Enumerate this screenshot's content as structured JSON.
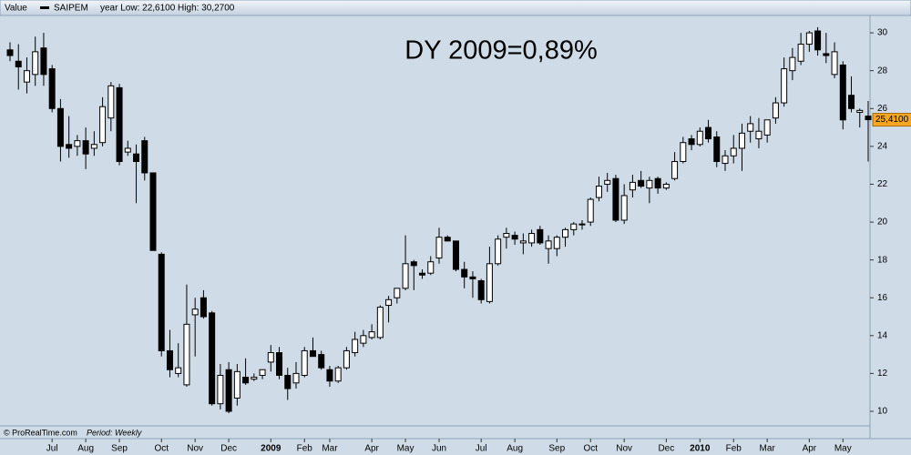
{
  "chart_data": {
    "type": "candlestick",
    "header_label": "Value",
    "subtitle": "year Low: 22,6100 High: 30,2700",
    "annotation": "DY 2009=0,89%",
    "source": "© ProRealTime.com",
    "period": "Period: Weekly",
    "last_price": {
      "value": 25.41,
      "label": "25,4100"
    },
    "last_price_color": "#f5a623",
    "ylim": [
      9.23,
      30.87
    ],
    "yticks": [
      10,
      12,
      14,
      16,
      18,
      20,
      22,
      24,
      26,
      28,
      30
    ],
    "categories": [
      null,
      null,
      null,
      null,
      null,
      "Jul",
      null,
      null,
      null,
      "Aug",
      null,
      null,
      null,
      "Sep",
      null,
      null,
      null,
      null,
      "Oct",
      null,
      null,
      null,
      "Nov",
      null,
      null,
      null,
      "Dec",
      null,
      null,
      null,
      null,
      "2009",
      null,
      null,
      null,
      "Feb",
      null,
      null,
      "Mar",
      null,
      null,
      null,
      null,
      "Apr",
      null,
      null,
      null,
      "May",
      null,
      null,
      null,
      "Jun",
      null,
      null,
      null,
      null,
      "Jul",
      null,
      null,
      null,
      "Aug",
      null,
      null,
      null,
      null,
      "Sep",
      null,
      null,
      null,
      "Oct",
      null,
      null,
      null,
      "Nov",
      null,
      null,
      null,
      null,
      "Dec",
      null,
      null,
      null,
      "2010",
      null,
      null,
      null,
      "Feb",
      null,
      null,
      null,
      "Mar",
      null,
      null,
      null,
      null,
      "Apr",
      null,
      null,
      null,
      "May",
      null,
      null,
      null
    ],
    "series": [
      {
        "name": "SAIPEM",
        "up_color": "#ffffff",
        "down_color": "#000000",
        "open": [
          29.1,
          28.5,
          27.4,
          27.8,
          29.2,
          28.1,
          26.0,
          24.1,
          24.0,
          24.3,
          23.9,
          24.2,
          25.5,
          27.1,
          23.7,
          23.6,
          24.3,
          22.6,
          18.3,
          13.2,
          12.0,
          11.4,
          15.1,
          16.0,
          15.2,
          10.4,
          12.2,
          10.7,
          11.8,
          11.7,
          11.9,
          12.6,
          13.1,
          11.9,
          11.5,
          11.9,
          13.2,
          13.0,
          12.2,
          11.6,
          12.3,
          13.1,
          13.6,
          13.9,
          13.9,
          15.6,
          16.0,
          16.5,
          17.9,
          17.3,
          17.3,
          18.1,
          19.2,
          19.0,
          17.5,
          17.1,
          16.9,
          15.8,
          17.8,
          19.2,
          19.3,
          18.9,
          18.9,
          19.6,
          18.6,
          18.6,
          19.2,
          19.6,
          19.9,
          20.0,
          21.3,
          22.0,
          22.3,
          20.1,
          21.7,
          22.2,
          21.8,
          22.3,
          21.8,
          22.3,
          23.2,
          24.4,
          24.1,
          25.0,
          24.5,
          23.1,
          23.5,
          23.9,
          24.8,
          24.4,
          24.6,
          25.5,
          26.3,
          28.0,
          28.5,
          29.4,
          30.1,
          28.9,
          27.8,
          28.3,
          26.7,
          25.8,
          25.6
        ],
        "high": [
          29.5,
          29.4,
          28.7,
          29.8,
          30.0,
          28.3,
          26.5,
          25.6,
          24.6,
          25.0,
          24.8,
          26.6,
          27.4,
          27.3,
          24.3,
          24.1,
          24.5,
          22.6,
          18.4,
          14.3,
          13.6,
          16.7,
          16.0,
          16.4,
          15.3,
          12.5,
          12.6,
          12.5,
          12.8,
          12.0,
          12.2,
          13.5,
          13.4,
          12.3,
          12.6,
          13.4,
          13.9,
          13.2,
          12.4,
          12.4,
          13.4,
          14.2,
          14.3,
          14.6,
          15.6,
          16.1,
          16.5,
          19.3,
          18.0,
          17.5,
          18.2,
          19.7,
          19.3,
          19.0,
          17.9,
          17.4,
          17.0,
          18.7,
          19.3,
          19.7,
          19.5,
          19.4,
          19.6,
          19.8,
          19.3,
          19.3,
          19.7,
          20.0,
          20.1,
          21.3,
          22.4,
          22.6,
          22.5,
          22.0,
          22.5,
          22.7,
          22.4,
          22.4,
          22.1,
          23.7,
          24.5,
          24.6,
          25.0,
          25.4,
          24.8,
          23.8,
          24.6,
          25.2,
          25.6,
          25.5,
          25.2,
          26.6,
          28.7,
          29.2,
          30.0,
          30.1,
          30.3,
          30.0,
          29.5,
          28.5,
          27.7,
          26.0,
          26.4
        ],
        "low": [
          28.5,
          27.0,
          26.8,
          27.2,
          27.2,
          25.8,
          23.2,
          23.4,
          23.5,
          22.8,
          23.5,
          24.0,
          24.8,
          23.0,
          23.5,
          21.0,
          22.2,
          18.5,
          12.9,
          11.8,
          11.8,
          11.3,
          12.9,
          14.9,
          10.3,
          10.1,
          9.9,
          10.3,
          11.4,
          11.6,
          11.7,
          12.1,
          11.7,
          10.6,
          11.2,
          11.8,
          12.9,
          12.2,
          11.3,
          11.5,
          12.2,
          12.9,
          13.4,
          13.8,
          13.8,
          14.7,
          15.7,
          16.4,
          16.4,
          17.0,
          17.2,
          17.8,
          19.0,
          17.4,
          16.5,
          16.0,
          15.7,
          15.7,
          17.7,
          18.6,
          18.8,
          18.3,
          18.7,
          18.8,
          17.8,
          18.2,
          18.7,
          19.3,
          19.6,
          19.8,
          21.1,
          21.6,
          20.0,
          19.9,
          21.3,
          21.8,
          21.0,
          21.5,
          21.7,
          22.2,
          23.1,
          23.8,
          24.0,
          24.2,
          22.9,
          22.7,
          23.1,
          22.7,
          24.2,
          23.9,
          24.2,
          25.2,
          26.1,
          27.5,
          28.3,
          29.0,
          28.8,
          28.4,
          27.6,
          24.9,
          25.8,
          25.0,
          23.2
        ],
        "close": [
          28.8,
          28.2,
          28.0,
          29.0,
          27.8,
          26.0,
          24.0,
          23.9,
          24.3,
          23.6,
          24.1,
          26.1,
          27.2,
          23.2,
          23.9,
          23.2,
          22.6,
          18.5,
          13.2,
          12.2,
          12.3,
          14.6,
          15.4,
          15.0,
          10.4,
          11.9,
          10.0,
          12.1,
          11.5,
          11.8,
          12.2,
          13.1,
          11.9,
          11.2,
          12.0,
          13.2,
          12.9,
          12.3,
          11.6,
          12.3,
          13.2,
          13.8,
          14.0,
          14.2,
          15.5,
          15.9,
          16.5,
          17.8,
          17.7,
          17.2,
          17.9,
          19.2,
          19.0,
          17.5,
          17.1,
          17.0,
          15.9,
          17.8,
          19.1,
          19.4,
          19.1,
          19.0,
          19.4,
          18.9,
          19.0,
          19.2,
          19.6,
          19.9,
          19.9,
          21.2,
          21.9,
          22.2,
          20.1,
          21.4,
          22.1,
          21.9,
          22.2,
          21.8,
          22.0,
          23.2,
          24.2,
          24.1,
          24.8,
          24.4,
          23.2,
          23.5,
          23.9,
          24.7,
          25.2,
          24.8,
          25.4,
          26.3,
          28.1,
          28.7,
          29.4,
          30.0,
          29.1,
          28.8,
          29.0,
          25.4,
          26.0,
          25.9,
          25.41
        ]
      }
    ]
  }
}
